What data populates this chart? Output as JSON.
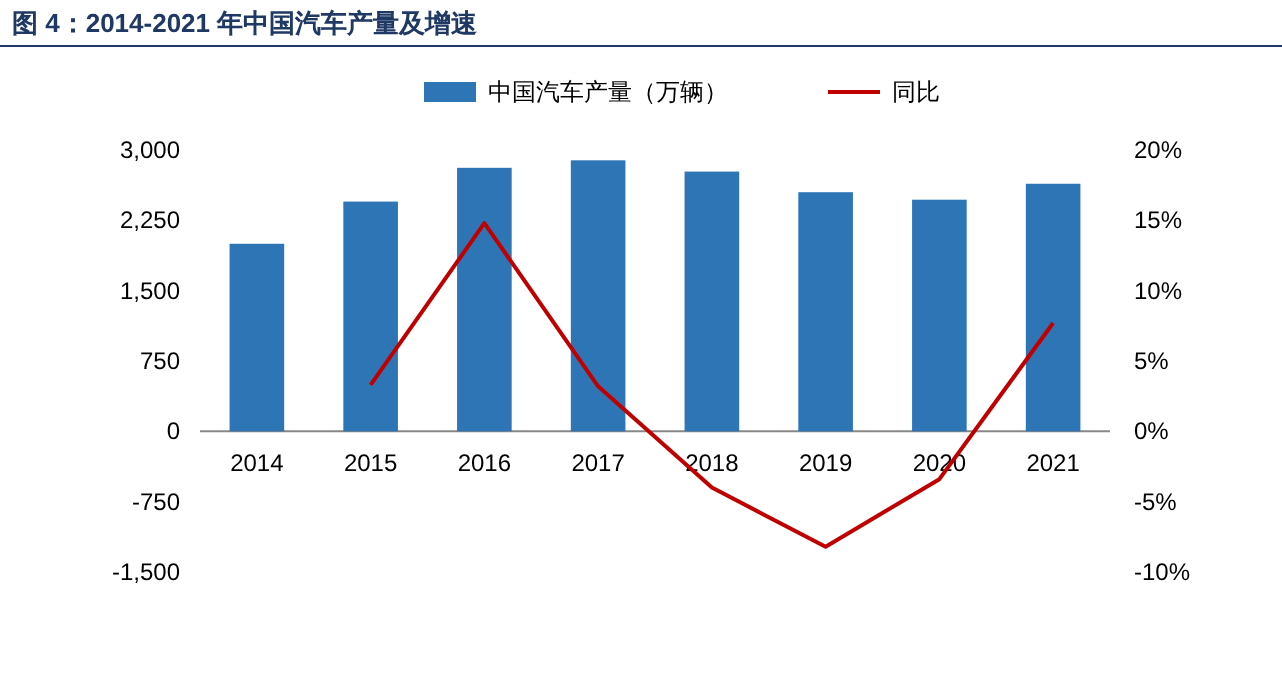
{
  "chart_data": {
    "type": "bar",
    "title": "图 4：2014-2021 年中国汽车产量及增速",
    "categories": [
      "2014",
      "2015",
      "2016",
      "2017",
      "2018",
      "2019",
      "2020",
      "2021"
    ],
    "series": [
      {
        "name": "中国汽车产量（万辆）",
        "color": "#2e75b6",
        "values": [
          2000,
          2450,
          2810,
          2890,
          2770,
          2550,
          2470,
          2640
        ]
      },
      {
        "name": "同比",
        "type": "line",
        "axis": "y2",
        "color": "#c00000",
        "values": [
          null,
          3.3,
          14.8,
          3.2,
          -4.0,
          -8.2,
          -3.4,
          7.7
        ]
      }
    ],
    "ylim": [
      -1500,
      3000
    ],
    "yticks": [
      {
        "value": -1500,
        "label": "-1,500"
      },
      {
        "value": -750,
        "label": "-750"
      },
      {
        "value": 0,
        "label": "0"
      },
      {
        "value": 750,
        "label": "750"
      },
      {
        "value": 1500,
        "label": "1,500"
      },
      {
        "value": 2250,
        "label": "2,250"
      },
      {
        "value": 3000,
        "label": "3,000"
      }
    ],
    "y2lim": [
      -10,
      20
    ],
    "y2ticks": [
      {
        "value": -10,
        "label": "-10%"
      },
      {
        "value": -5,
        "label": "-5%"
      },
      {
        "value": 0,
        "label": "0%"
      },
      {
        "value": 5,
        "label": "5%"
      },
      {
        "value": 10,
        "label": "10%"
      },
      {
        "value": 15,
        "label": "15%"
      },
      {
        "value": 20,
        "label": "20%"
      }
    ],
    "legend": "top",
    "marker": "none",
    "line_style": "solid"
  }
}
